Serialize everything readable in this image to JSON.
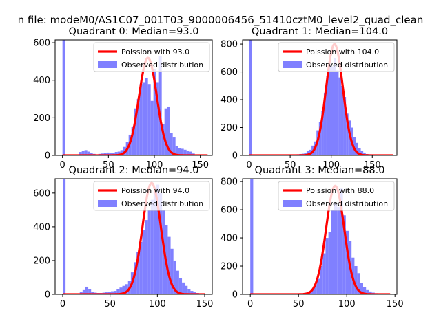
{
  "figure": {
    "suptitle": "n file: modeM0/AS1C07_001T03_9000006456_51410cztM0_level2_quad_clean"
  },
  "colors": {
    "fit": "#ff0000",
    "hist": "#8080ff",
    "axes": "#000000"
  },
  "chart_data": [
    {
      "type": "bar",
      "title": "Quadrant 0: Median=93.0",
      "xlim": [
        -8,
        163
      ],
      "ylim": [
        0,
        615
      ],
      "xticks": [
        0,
        50,
        100,
        150
      ],
      "yticks": [
        0,
        200,
        400,
        600
      ],
      "legend": {
        "location": "top-right",
        "entries": [
          "Poission with 93.0",
          "Observed distribution"
        ]
      },
      "series": [
        {
          "name": "Observed distribution",
          "kind": "histogram",
          "bins": [
            [
              0,
              3,
              615
            ],
            [
              18,
              21,
              18
            ],
            [
              21,
              24,
              25
            ],
            [
              24,
              27,
              28
            ],
            [
              27,
              30,
              20
            ],
            [
              30,
              33,
              12
            ],
            [
              33,
              36,
              8
            ],
            [
              36,
              39,
              5
            ],
            [
              39,
              42,
              8
            ],
            [
              42,
              45,
              10
            ],
            [
              45,
              48,
              12
            ],
            [
              48,
              51,
              15
            ],
            [
              51,
              54,
              14
            ],
            [
              54,
              57,
              12
            ],
            [
              57,
              60,
              18
            ],
            [
              60,
              63,
              20
            ],
            [
              63,
              66,
              28
            ],
            [
              66,
              69,
              45
            ],
            [
              69,
              72,
              70
            ],
            [
              72,
              75,
              110
            ],
            [
              75,
              78,
              150
            ],
            [
              78,
              81,
              250
            ],
            [
              81,
              84,
              300
            ],
            [
              84,
              87,
              380
            ],
            [
              87,
              90,
              390
            ],
            [
              90,
              93,
              410
            ],
            [
              93,
              96,
              380
            ],
            [
              96,
              99,
              290
            ],
            [
              99,
              102,
              460
            ],
            [
              102,
              105,
              390
            ],
            [
              105,
              108,
              530
            ],
            [
              108,
              111,
              165
            ],
            [
              111,
              114,
              250
            ],
            [
              114,
              117,
              260
            ],
            [
              117,
              120,
              120
            ],
            [
              120,
              123,
              95
            ],
            [
              123,
              126,
              50
            ],
            [
              126,
              129,
              40
            ],
            [
              129,
              132,
              35
            ],
            [
              132,
              135,
              30
            ],
            [
              135,
              138,
              22
            ],
            [
              138,
              141,
              20
            ],
            [
              141,
              144,
              10
            ],
            [
              144,
              147,
              5
            ],
            [
              147,
              150,
              3
            ],
            [
              150,
              153,
              2
            ]
          ]
        },
        {
          "name": "Poission with 93.0",
          "kind": "poisson",
          "lambda": 93.0,
          "peak": 520,
          "x_range": [
            0,
            158
          ]
        }
      ]
    },
    {
      "type": "bar",
      "title": "Quadrant 1: Median=104.0",
      "xlim": [
        -8,
        180
      ],
      "ylim": [
        0,
        830
      ],
      "xticks": [
        0,
        50,
        100,
        150
      ],
      "yticks": [
        0,
        200,
        400,
        600,
        800
      ],
      "legend": {
        "location": "top-right",
        "entries": [
          "Poission with 104.0",
          "Observed distribution"
        ]
      },
      "series": [
        {
          "name": "Observed distribution",
          "kind": "histogram",
          "bins": [
            [
              0,
              3,
              830
            ],
            [
              55,
              58,
              5
            ],
            [
              58,
              61,
              8
            ],
            [
              61,
              64,
              10
            ],
            [
              64,
              67,
              12
            ],
            [
              67,
              70,
              15
            ],
            [
              70,
              73,
              30
            ],
            [
              73,
              76,
              40
            ],
            [
              76,
              79,
              70
            ],
            [
              79,
              82,
              100
            ],
            [
              82,
              85,
              180
            ],
            [
              85,
              88,
              240
            ],
            [
              88,
              91,
              320
            ],
            [
              91,
              94,
              450
            ],
            [
              94,
              97,
              570
            ],
            [
              97,
              100,
              650
            ],
            [
              100,
              103,
              640
            ],
            [
              103,
              106,
              700
            ],
            [
              106,
              109,
              610
            ],
            [
              109,
              112,
              560
            ],
            [
              112,
              115,
              500
            ],
            [
              115,
              118,
              420
            ],
            [
              118,
              121,
              300
            ],
            [
              121,
              124,
              250
            ],
            [
              124,
              127,
              200
            ],
            [
              127,
              130,
              130
            ],
            [
              130,
              133,
              90
            ],
            [
              133,
              136,
              50
            ],
            [
              136,
              139,
              30
            ],
            [
              139,
              142,
              20
            ],
            [
              142,
              145,
              10
            ],
            [
              145,
              148,
              8
            ],
            [
              148,
              151,
              5
            ]
          ]
        },
        {
          "name": "Poission with 104.0",
          "kind": "poisson",
          "lambda": 104.0,
          "peak": 800,
          "x_range": [
            0,
            175
          ]
        }
      ]
    },
    {
      "type": "bar",
      "title": "Quadrant 2: Median=94.0",
      "xlim": [
        -8,
        158
      ],
      "ylim": [
        0,
        685
      ],
      "xticks": [
        0,
        50,
        100,
        150
      ],
      "yticks": [
        0,
        200,
        400,
        600
      ],
      "legend": {
        "location": "top-right",
        "entries": [
          "Poission with 94.0",
          "Observed distribution"
        ]
      },
      "series": [
        {
          "name": "Observed distribution",
          "kind": "histogram",
          "bins": [
            [
              0,
              3,
              685
            ],
            [
              18,
              21,
              15
            ],
            [
              21,
              24,
              25
            ],
            [
              24,
              27,
              45
            ],
            [
              27,
              30,
              30
            ],
            [
              30,
              33,
              15
            ],
            [
              33,
              36,
              10
            ],
            [
              36,
              39,
              8
            ],
            [
              39,
              42,
              8
            ],
            [
              42,
              45,
              10
            ],
            [
              45,
              48,
              12
            ],
            [
              48,
              51,
              15
            ],
            [
              51,
              54,
              18
            ],
            [
              54,
              57,
              20
            ],
            [
              57,
              60,
              30
            ],
            [
              60,
              63,
              40
            ],
            [
              63,
              66,
              50
            ],
            [
              66,
              69,
              60
            ],
            [
              69,
              72,
              80
            ],
            [
              72,
              75,
              130
            ],
            [
              75,
              78,
              190
            ],
            [
              78,
              81,
              250
            ],
            [
              81,
              84,
              310
            ],
            [
              84,
              87,
              380
            ],
            [
              87,
              90,
              440
            ],
            [
              90,
              93,
              500
            ],
            [
              93,
              96,
              560
            ],
            [
              96,
              99,
              610
            ],
            [
              99,
              102,
              650
            ],
            [
              102,
              105,
              600
            ],
            [
              105,
              108,
              500
            ],
            [
              108,
              111,
              410
            ],
            [
              111,
              114,
              340
            ],
            [
              114,
              117,
              270
            ],
            [
              117,
              120,
              200
            ],
            [
              120,
              123,
              140
            ],
            [
              123,
              126,
              95
            ],
            [
              126,
              129,
              70
            ],
            [
              129,
              132,
              50
            ],
            [
              132,
              135,
              30
            ],
            [
              135,
              138,
              20
            ],
            [
              138,
              141,
              12
            ],
            [
              141,
              144,
              8
            ],
            [
              144,
              147,
              5
            ]
          ]
        },
        {
          "name": "Poission with 94.0",
          "kind": "poisson",
          "lambda": 94.0,
          "peak": 660,
          "x_range": [
            0,
            150
          ]
        }
      ]
    },
    {
      "type": "bar",
      "title": "Quadrant 3: Median=88.0",
      "xlim": [
        -8,
        152
      ],
      "ylim": [
        0,
        820
      ],
      "xticks": [
        0,
        50,
        100,
        150
      ],
      "yticks": [
        0,
        200,
        400,
        600,
        800
      ],
      "legend": {
        "location": "top-right",
        "entries": [
          "Poission with 88.0",
          "Observed distribution"
        ]
      },
      "series": [
        {
          "name": "Observed distribution",
          "kind": "histogram",
          "bins": [
            [
              0,
              3,
              820
            ],
            [
              51,
              54,
              5
            ],
            [
              54,
              57,
              8
            ],
            [
              57,
              60,
              12
            ],
            [
              60,
              63,
              20
            ],
            [
              63,
              66,
              40
            ],
            [
              66,
              69,
              70
            ],
            [
              69,
              72,
              110
            ],
            [
              72,
              75,
              200
            ],
            [
              75,
              78,
              290
            ],
            [
              78,
              81,
              400
            ],
            [
              81,
              84,
              440
            ],
            [
              84,
              87,
              600
            ],
            [
              87,
              90,
              650
            ],
            [
              90,
              93,
              620
            ],
            [
              93,
              96,
              750
            ],
            [
              96,
              99,
              560
            ],
            [
              99,
              102,
              450
            ],
            [
              102,
              105,
              380
            ],
            [
              105,
              108,
              260
            ],
            [
              108,
              111,
              200
            ],
            [
              111,
              114,
              150
            ],
            [
              114,
              117,
              80
            ],
            [
              117,
              120,
              50
            ],
            [
              120,
              123,
              30
            ],
            [
              123,
              126,
              20
            ],
            [
              126,
              129,
              12
            ],
            [
              129,
              132,
              8
            ],
            [
              132,
              135,
              5
            ]
          ]
        },
        {
          "name": "Poission with 88.0",
          "kind": "poisson",
          "lambda": 88.0,
          "peak": 770,
          "x_range": [
            0,
            145
          ]
        }
      ]
    }
  ]
}
